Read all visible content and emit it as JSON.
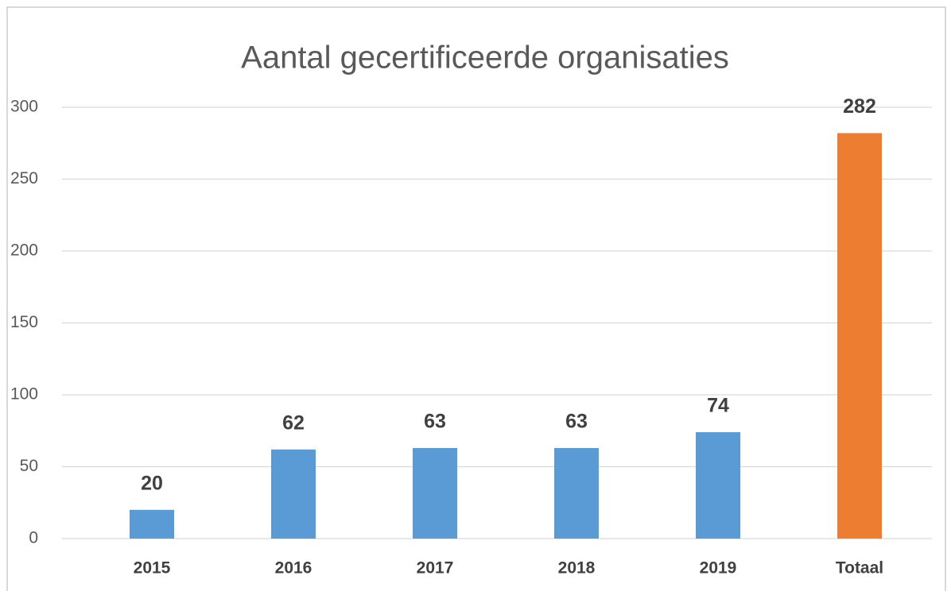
{
  "chart_data": {
    "type": "bar",
    "title": "Aantal gecertificeerde organisaties",
    "categories": [
      "2015",
      "2016",
      "2017",
      "2018",
      "2019",
      "Totaal"
    ],
    "values": [
      20,
      62,
      63,
      63,
      74,
      282
    ],
    "colors": [
      "#5b9bd5",
      "#5b9bd5",
      "#5b9bd5",
      "#5b9bd5",
      "#5b9bd5",
      "#ed7d31"
    ],
    "ylim": [
      0,
      300
    ],
    "yticks": [
      0,
      50,
      100,
      150,
      200,
      250,
      300
    ],
    "grid": true,
    "data_labels": true
  }
}
